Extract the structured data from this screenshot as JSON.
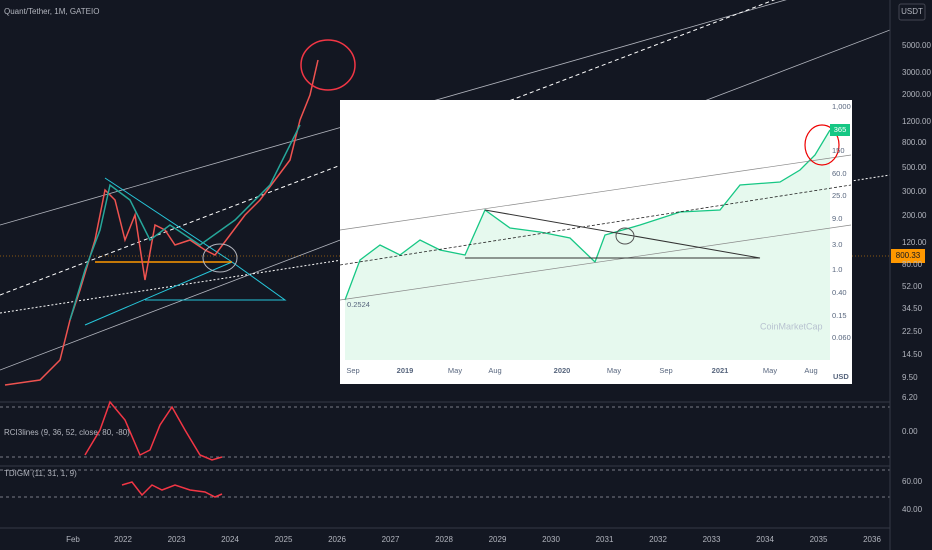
{
  "header": {
    "title": "Quant/Tether, 1M, GATEIO",
    "currency": "USDT"
  },
  "price_axis": {
    "labels": [
      "5000.00",
      "3000.00",
      "2000.00",
      "1200.00",
      "800.00",
      "500.00",
      "300.00",
      "200.00",
      "120.00",
      "80.00",
      "52.00",
      "34.50",
      "22.50",
      "14.50",
      "9.50",
      "6.20"
    ],
    "last_price": "800.33"
  },
  "time_axis": {
    "labels": [
      "Feb",
      "2022",
      "2023",
      "2024",
      "2025",
      "2026",
      "2027",
      "2028",
      "2029",
      "2030",
      "2031",
      "2032",
      "2033",
      "2034",
      "2035",
      "2036"
    ]
  },
  "indicators": [
    {
      "label": "RCI3lines (9, 36, 52, close, 80, -80)",
      "axis": [
        "0.00"
      ]
    },
    {
      "label": "TDIGM (11, 31, 1, 9)",
      "axis": [
        "60.00",
        "40.00"
      ]
    }
  ],
  "inset": {
    "price_labels": [
      "1,000",
      "150",
      "60.0",
      "25.0",
      "9.0",
      "3.0",
      "1.0",
      "0.40",
      "0.15",
      "0.060"
    ],
    "last_price": "365",
    "low_label": "0.2524",
    "watermark": "CoinMarketCap",
    "unit": "USD",
    "time_labels": [
      "Sep",
      "2019",
      "May",
      "Aug",
      "2020",
      "May",
      "Sep",
      "2021",
      "May",
      "Aug"
    ]
  }
}
